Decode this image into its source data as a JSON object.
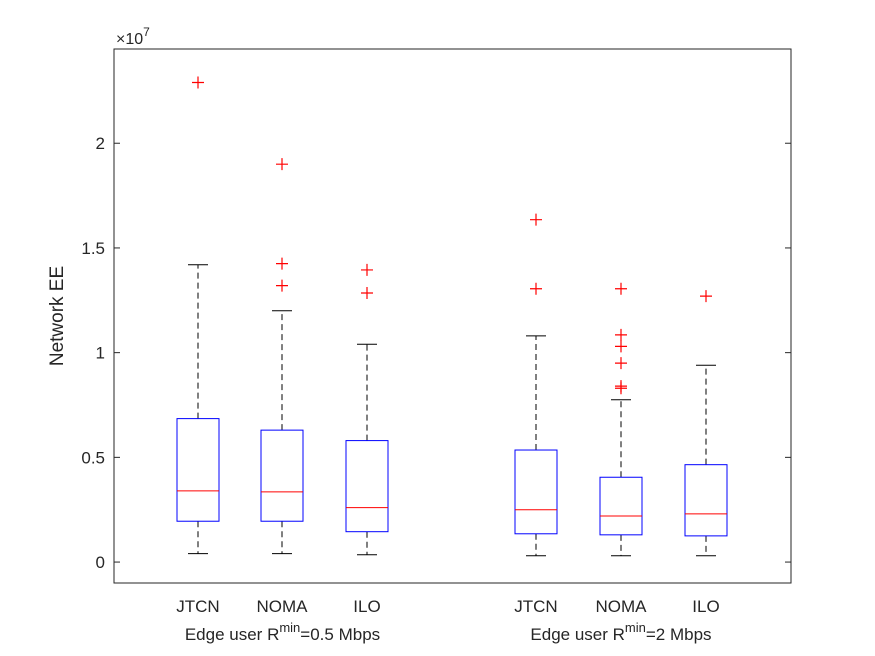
{
  "chart_data": {
    "type": "box",
    "ylabel": "Network EE",
    "y_exponent_label": "×10",
    "y_exponent_power": "7",
    "y_scale": 10000000,
    "ylim": [
      -0.1,
      2.45
    ],
    "yticks": [
      0,
      0.5,
      1,
      1.5,
      2
    ],
    "ytick_labels": [
      "0",
      "0.5",
      "1",
      "1.5",
      "2"
    ],
    "grid": false,
    "colors": {
      "box": "#0000ff",
      "median": "#ff0000",
      "whisker": "#000000",
      "outlier": "#ff0000",
      "axes": "#262626"
    },
    "groups": [
      {
        "label_prefix": "Edge user R",
        "label_sup": "min",
        "label_suffix": "=0.5 Mbps",
        "boxes": [
          {
            "name": "JTCN",
            "min": 0.04,
            "q1": 0.195,
            "median": 0.34,
            "q3": 0.685,
            "max": 1.42,
            "outliers": [
              2.29
            ]
          },
          {
            "name": "NOMA",
            "min": 0.04,
            "q1": 0.195,
            "median": 0.335,
            "q3": 0.63,
            "max": 1.2,
            "outliers": [
              1.9,
              1.425,
              1.32
            ]
          },
          {
            "name": "ILO",
            "min": 0.035,
            "q1": 0.145,
            "median": 0.26,
            "q3": 0.58,
            "max": 1.04,
            "outliers": [
              1.395,
              1.285
            ]
          }
        ]
      },
      {
        "label_prefix": "Edge user R",
        "label_sup": "min",
        "label_suffix": "=2 Mbps",
        "boxes": [
          {
            "name": "JTCN",
            "min": 0.03,
            "q1": 0.135,
            "median": 0.25,
            "q3": 0.535,
            "max": 1.08,
            "outliers": [
              1.635,
              1.305
            ]
          },
          {
            "name": "NOMA",
            "min": 0.03,
            "q1": 0.13,
            "median": 0.22,
            "q3": 0.405,
            "max": 0.775,
            "outliers": [
              1.305,
              1.085,
              1.03,
              0.95,
              0.84,
              0.83
            ]
          },
          {
            "name": "ILO",
            "min": 0.03,
            "q1": 0.125,
            "median": 0.23,
            "q3": 0.465,
            "max": 0.94,
            "outliers": [
              1.27
            ]
          }
        ]
      }
    ]
  }
}
